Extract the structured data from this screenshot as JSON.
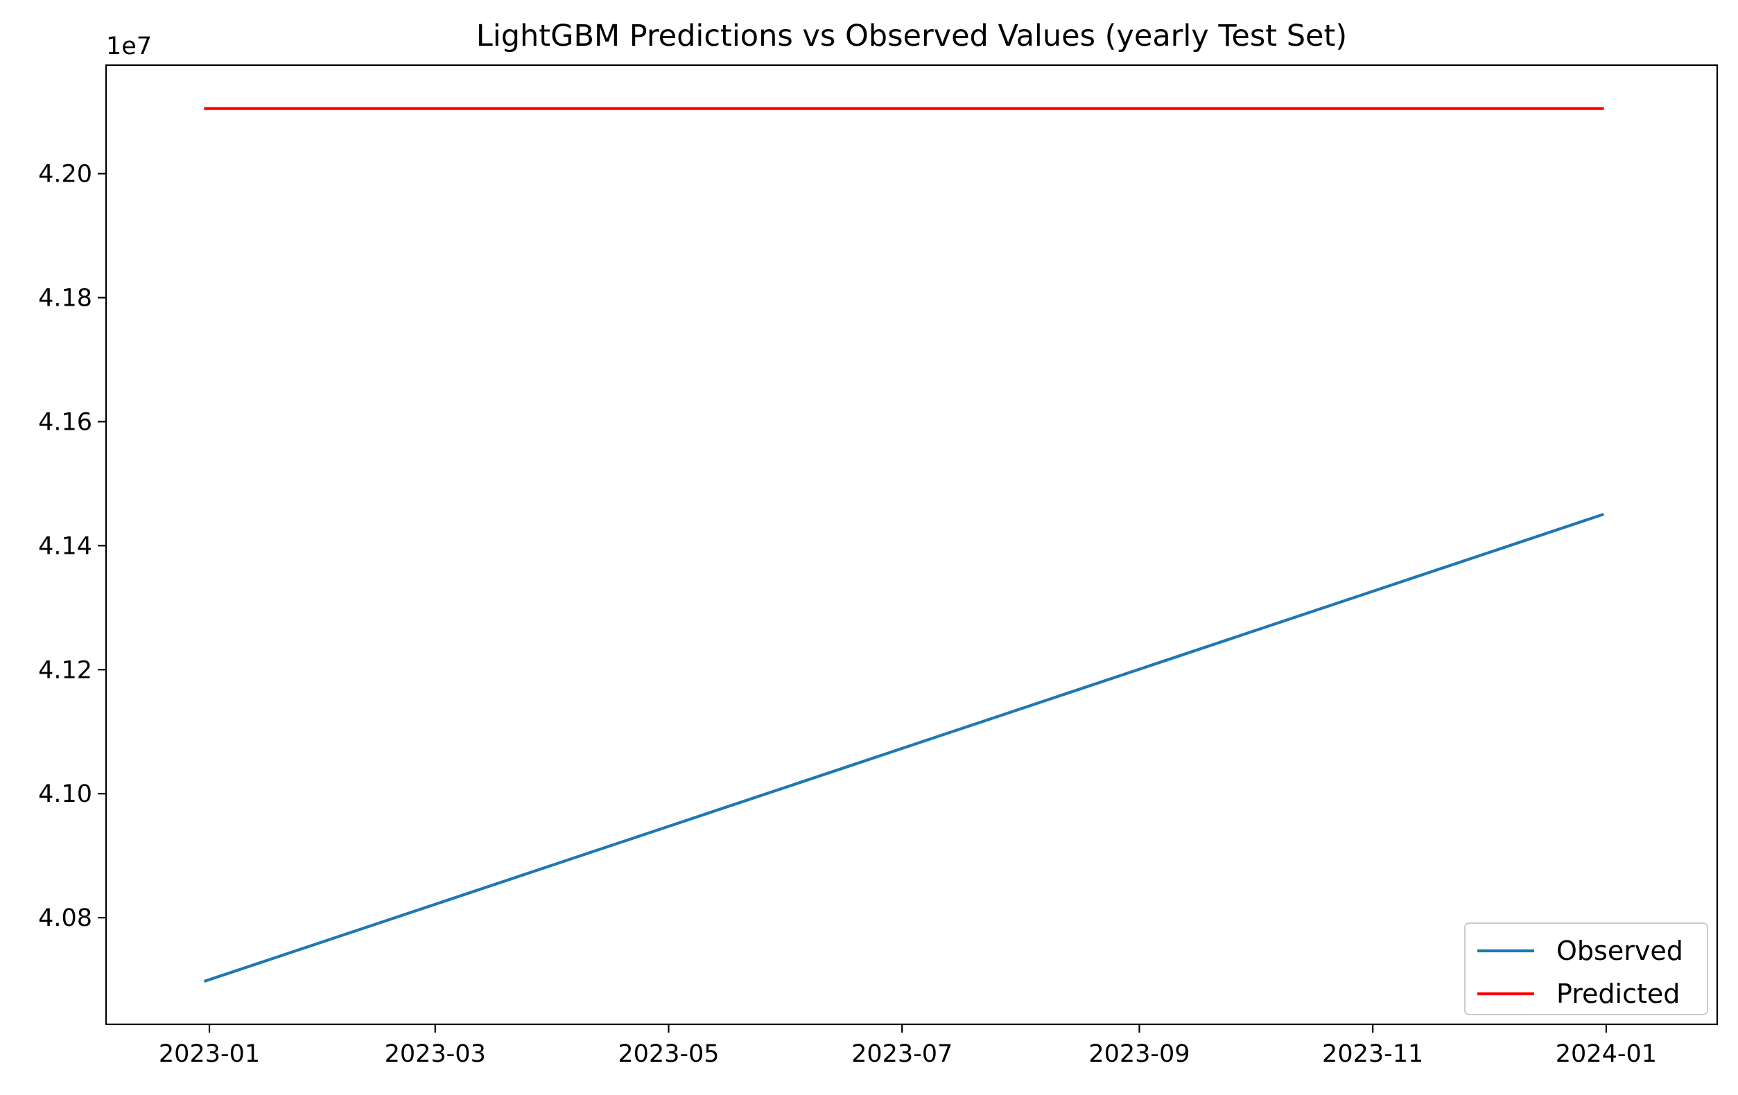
{
  "chart_data": {
    "type": "line",
    "title": "LightGBM Predictions vs Observed Values (yearly Test Set)",
    "xlabel": "",
    "ylabel": "",
    "y_scale_label": "1e7",
    "x_ticks": [
      "2023-01",
      "2023-03",
      "2023-05",
      "2023-07",
      "2023-09",
      "2023-11",
      "2024-01"
    ],
    "y_ticks": [
      "4.08",
      "4.10",
      "4.12",
      "4.14",
      "4.16",
      "4.18",
      "4.20"
    ],
    "ylim": [
      40628000,
      42175000
    ],
    "xlim": [
      "2022-12-05",
      "2024-01-30"
    ],
    "grid": false,
    "legend_position": "lower-right",
    "series": [
      {
        "name": "Observed",
        "color": "#1f77b4",
        "x": [
          "2022-12-31",
          "2023-12-31"
        ],
        "y": [
          40698000,
          41450000
        ]
      },
      {
        "name": "Predicted",
        "color": "#ff0000",
        "x": [
          "2022-12-31",
          "2023-12-31"
        ],
        "y": [
          42105000,
          42105000
        ]
      }
    ]
  }
}
